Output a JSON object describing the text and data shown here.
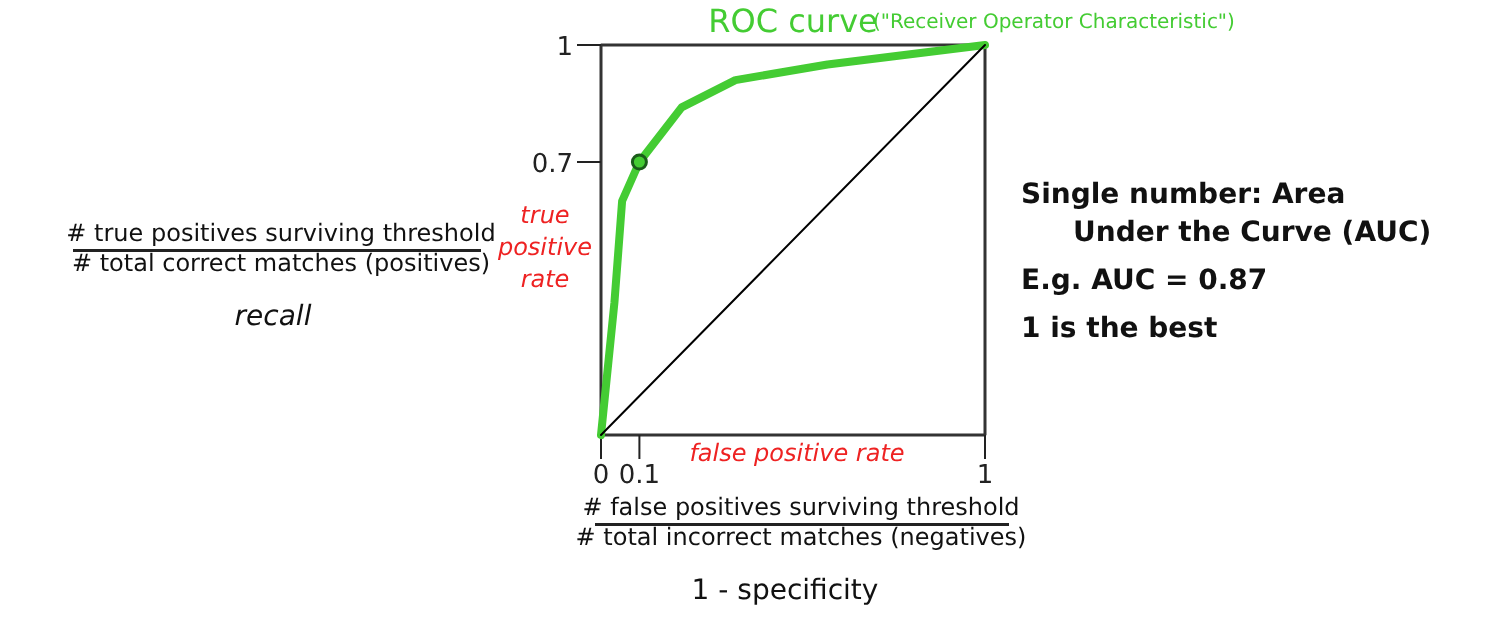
{
  "chart_data": {
    "type": "line",
    "title": "ROC curve",
    "subtitle": "(\"Receiver Operator Characteristic\")",
    "xlabel": "false positive rate",
    "ylabel": "true positive rate",
    "xlim": [
      0,
      1
    ],
    "ylim": [
      0,
      1
    ],
    "xticks": [
      0,
      0.1,
      1
    ],
    "yticks": [
      0.7,
      1
    ],
    "grid": false,
    "series": [
      {
        "color": "#44cc33",
        "x": [
          0,
          0.035,
          0.055,
          0.1,
          0.21,
          0.35,
          0.59,
          1
        ],
        "values": [
          0,
          0.34,
          0.6,
          0.7,
          0.84,
          0.91,
          0.95,
          1
        ]
      },
      {
        "color": "#000000",
        "x": [
          0,
          1
        ],
        "values": [
          0,
          1
        ]
      },
      {
        "type": "scatter",
        "marker": "circle",
        "color": "#1a5c1a",
        "x": [
          0.1
        ],
        "values": [
          0.7
        ]
      }
    ],
    "annotations": [
      "# true positives surviving threshold",
      "# total correct matches (positives)",
      "recall",
      "# false positives surviving threshold",
      "# total incorrect matches (negatives)",
      "1 - specificity",
      "Single number: Area",
      "Under the Curve (AUC)",
      "E.g. AUC = 0.87",
      "1 is the best"
    ]
  }
}
